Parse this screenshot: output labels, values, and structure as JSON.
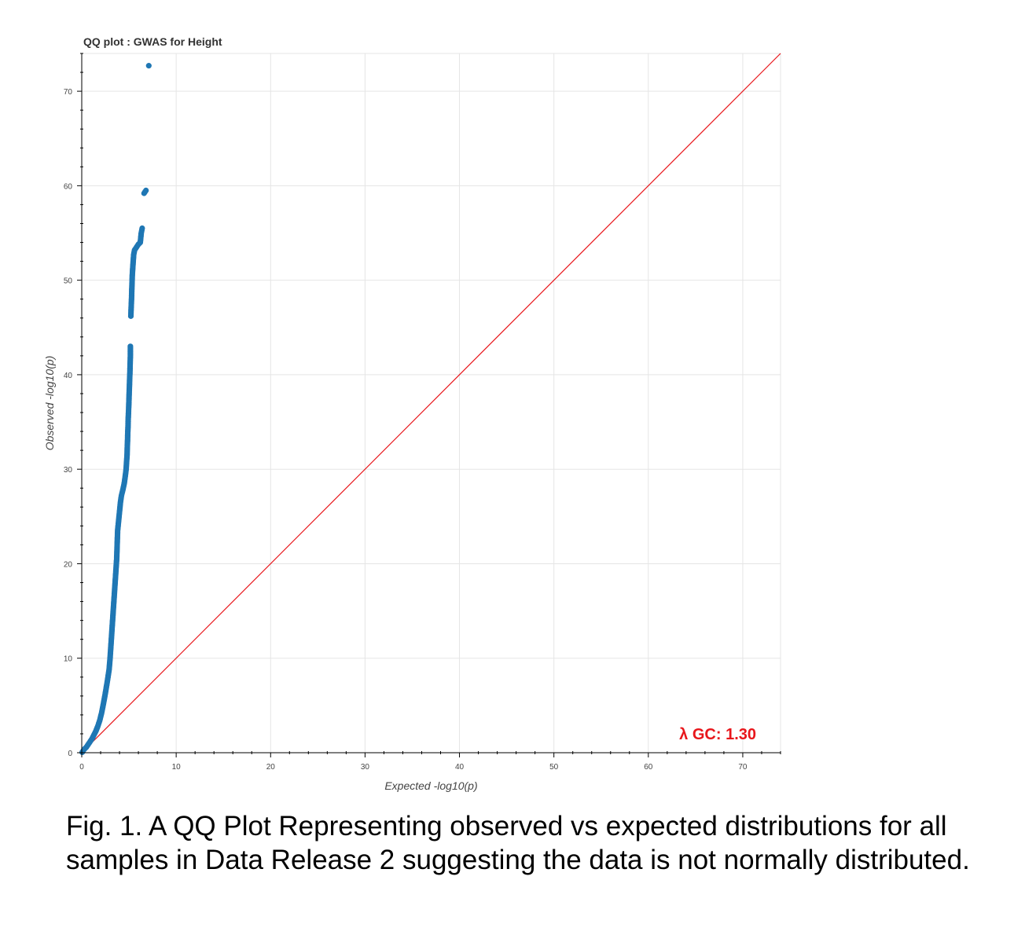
{
  "chart_data": {
    "type": "scatter",
    "title": "QQ plot : GWAS for Height",
    "xlabel": "Expected -log10(p)",
    "ylabel": "Observed -log10(p)",
    "xlim": [
      0,
      74
    ],
    "ylim": [
      0,
      74
    ],
    "x_ticks": [
      0,
      10,
      20,
      30,
      40,
      50,
      60,
      70
    ],
    "y_ticks": [
      0,
      10,
      20,
      30,
      40,
      50,
      60,
      70
    ],
    "x_tick_labels": [
      "0",
      "10",
      "20",
      "30",
      "40",
      "50",
      "60",
      "70"
    ],
    "y_tick_labels": [
      "0",
      "10",
      "20",
      "30",
      "40",
      "50",
      "60",
      "70"
    ],
    "grid": true,
    "point_color": "#1f77b4",
    "reference_line_color": "#e8161b",
    "reference_line": {
      "x": [
        0,
        74
      ],
      "y": [
        0,
        74
      ]
    },
    "annotation": {
      "text": "λ GC: 1.30",
      "color": "#e8161b",
      "position": "bottom-right"
    },
    "series": [
      {
        "points": [
          [
            0.05,
            0.05
          ],
          [
            0.15,
            0.2
          ],
          [
            0.3,
            0.4
          ],
          [
            0.5,
            0.6
          ],
          [
            0.7,
            0.9
          ],
          [
            0.9,
            1.2
          ],
          [
            1.1,
            1.5
          ],
          [
            1.3,
            1.9
          ],
          [
            1.5,
            2.3
          ],
          [
            1.7,
            2.8
          ],
          [
            1.9,
            3.4
          ],
          [
            2.1,
            4.2
          ],
          [
            2.3,
            5.2
          ],
          [
            2.5,
            6.3
          ],
          [
            2.7,
            7.5
          ],
          [
            2.9,
            8.8
          ],
          [
            3.0,
            10.0
          ],
          [
            3.1,
            11.5
          ],
          [
            3.2,
            13.0
          ],
          [
            3.3,
            14.5
          ],
          [
            3.4,
            16.0
          ],
          [
            3.5,
            17.5
          ],
          [
            3.6,
            19.0
          ],
          [
            3.7,
            20.5
          ],
          [
            3.75,
            22.0
          ],
          [
            3.8,
            23.5
          ],
          [
            3.9,
            24.5
          ],
          [
            4.0,
            25.5
          ],
          [
            4.1,
            26.5
          ],
          [
            4.2,
            27.2
          ],
          [
            4.35,
            27.8
          ],
          [
            4.5,
            28.5
          ],
          [
            4.6,
            29.2
          ],
          [
            4.7,
            30.0
          ],
          [
            4.75,
            30.8
          ],
          [
            4.8,
            31.5
          ],
          [
            4.82,
            32.3
          ],
          [
            4.85,
            33.0
          ],
          [
            4.87,
            33.8
          ],
          [
            4.9,
            34.5
          ],
          [
            4.92,
            35.3
          ],
          [
            4.95,
            36.0
          ],
          [
            4.97,
            36.5
          ],
          [
            5.0,
            37.3
          ],
          [
            5.02,
            38.0
          ],
          [
            5.05,
            38.8
          ],
          [
            5.07,
            39.5
          ],
          [
            5.1,
            40.2
          ],
          [
            5.12,
            41.0
          ],
          [
            5.15,
            42.0
          ],
          [
            5.15,
            43.0
          ],
          [
            5.2,
            46.2
          ],
          [
            5.22,
            46.8
          ],
          [
            5.25,
            47.5
          ],
          [
            5.28,
            48.2
          ],
          [
            5.3,
            49.0
          ],
          [
            5.33,
            49.8
          ],
          [
            5.35,
            50.5
          ],
          [
            5.4,
            51.3
          ],
          [
            5.45,
            52.0
          ],
          [
            5.5,
            52.7
          ],
          [
            5.6,
            53.2
          ],
          [
            5.8,
            53.5
          ],
          [
            6.0,
            53.8
          ],
          [
            6.2,
            54.0
          ],
          [
            6.3,
            55.0
          ],
          [
            6.4,
            55.5
          ],
          [
            6.6,
            59.2
          ],
          [
            6.8,
            59.5
          ],
          [
            7.1,
            72.7
          ]
        ]
      }
    ]
  },
  "caption": "Fig. 1. A QQ Plot Representing observed vs expected distributions for all samples in Data Release 2 suggesting the data is not normally distributed."
}
